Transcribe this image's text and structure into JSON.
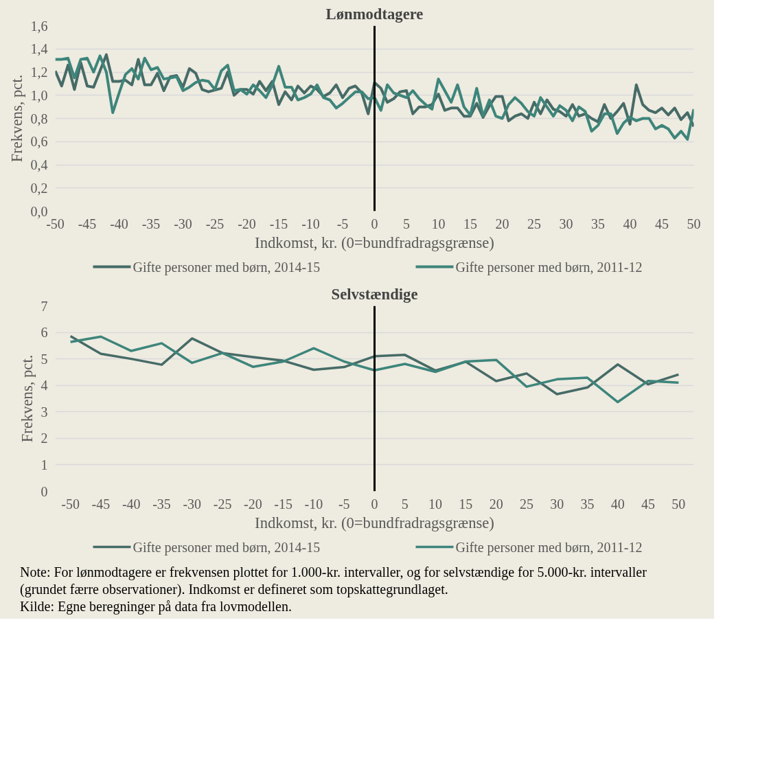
{
  "chart_data": [
    {
      "type": "line",
      "title": "Lønmodtagere",
      "xlabel": "Indkomst, kr. (0=bundfradragsgrænse)",
      "ylabel": "Frekvens, pct.",
      "series": [
        {
          "name": "Gifte personer med børn, 2014-15",
          "color": "#466b67",
          "x": [
            -50,
            -49,
            -48,
            -47,
            -46,
            -45,
            -44,
            -42,
            -41,
            -40,
            -39,
            -38,
            -37,
            -36,
            -35,
            -34,
            -33,
            -32,
            -31,
            -30,
            -29,
            -28,
            -27,
            -26,
            -24,
            -23,
            -22,
            -21,
            -20,
            -19,
            -18,
            -17,
            -16,
            -15,
            -14,
            -13,
            -12,
            -11,
            -10,
            -9,
            -8,
            -7,
            -6,
            -5,
            -4,
            -3,
            -2,
            -1,
            0,
            1,
            2,
            3,
            4,
            5,
            6,
            7,
            8,
            9,
            10,
            11,
            12,
            13,
            14,
            15,
            16,
            17,
            18,
            19,
            20,
            21,
            22,
            23,
            24,
            25,
            26,
            27,
            28,
            29,
            30,
            31,
            32,
            33,
            34,
            35,
            36,
            37,
            38,
            39,
            40,
            41,
            42,
            43,
            44,
            45,
            46,
            47,
            48,
            49,
            50
          ],
          "values": [
            1.21,
            1.08,
            1.26,
            1.05,
            1.28,
            1.08,
            1.07,
            1.35,
            1.12,
            1.12,
            1.13,
            1.09,
            1.31,
            1.09,
            1.09,
            1.19,
            1.04,
            1.16,
            1.17,
            1.07,
            1.23,
            1.19,
            1.05,
            1.03,
            1.06,
            1.2,
            1.0,
            1.05,
            1.05,
            1.01,
            1.12,
            1.04,
            1.12,
            0.92,
            1.03,
            0.96,
            1.08,
            1.02,
            1.08,
            1.05,
            0.99,
            1.02,
            1.09,
            0.98,
            1.06,
            1.08,
            1.02,
            0.84,
            1.11,
            1.06,
            0.94,
            0.97,
            1.03,
            1.04,
            0.84,
            0.9,
            0.9,
            0.92,
            1.01,
            0.87,
            0.89,
            0.89,
            0.82,
            0.82,
            0.93,
            0.81,
            0.91,
            0.99,
            0.99,
            0.78,
            0.82,
            0.84,
            0.8,
            0.94,
            0.84,
            0.96,
            0.88,
            0.86,
            0.82,
            0.92,
            0.82,
            0.84,
            0.8,
            0.77,
            0.92,
            0.8,
            0.86,
            0.93,
            0.75,
            1.09,
            0.92,
            0.87,
            0.85,
            0.89,
            0.83,
            0.89,
            0.79,
            0.85,
            0.73
          ]
        },
        {
          "name": "Gifte personer med børn, 2011-12",
          "color": "#3d857b",
          "x": [
            -50,
            -49,
            -48,
            -47,
            -46,
            -45,
            -44,
            -43,
            -42,
            -41,
            -40,
            -39,
            -38,
            -37,
            -36,
            -35,
            -34,
            -33,
            -32,
            -31,
            -30,
            -29,
            -28,
            -27,
            -26,
            -25,
            -24,
            -23,
            -22,
            -21,
            -20,
            -19,
            -18,
            -17,
            -16,
            -15,
            -14,
            -13,
            -12,
            -11,
            -10,
            -9,
            -8,
            -7,
            -6,
            -5,
            -4,
            -3,
            -2,
            -1,
            0,
            1,
            2,
            3,
            4,
            5,
            6,
            7,
            8,
            9,
            10,
            11,
            12,
            13,
            14,
            15,
            16,
            17,
            18,
            19,
            20,
            21,
            22,
            23,
            24,
            25,
            26,
            27,
            28,
            29,
            30,
            31,
            32,
            33,
            34,
            35,
            36,
            37,
            38,
            39,
            40,
            41,
            42,
            43,
            44,
            45,
            46,
            47,
            48,
            49,
            50
          ],
          "values": [
            1.31,
            1.31,
            1.32,
            1.15,
            1.31,
            1.32,
            1.2,
            1.34,
            1.2,
            0.85,
            1.02,
            1.18,
            1.23,
            1.14,
            1.32,
            1.22,
            1.24,
            1.14,
            1.15,
            1.16,
            1.04,
            1.07,
            1.11,
            1.13,
            1.12,
            1.05,
            1.21,
            1.26,
            1.04,
            1.05,
            1.01,
            1.09,
            1.04,
            0.98,
            1.09,
            1.25,
            1.07,
            1.07,
            0.96,
            0.98,
            1.01,
            1.09,
            0.98,
            0.96,
            0.89,
            0.93,
            0.98,
            1.03,
            1.03,
            0.97,
            0.98,
            0.87,
            1.09,
            1.02,
            1.0,
            0.98,
            1.04,
            0.97,
            0.92,
            0.88,
            1.14,
            1.04,
            0.94,
            1.09,
            0.9,
            0.83,
            1.06,
            0.82,
            0.96,
            0.82,
            0.8,
            0.92,
            0.98,
            0.93,
            0.86,
            0.82,
            0.98,
            0.9,
            0.82,
            0.91,
            0.87,
            0.78,
            0.9,
            0.86,
            0.69,
            0.74,
            0.84,
            0.84,
            0.67,
            0.76,
            0.81,
            0.78,
            0.8,
            0.8,
            0.71,
            0.74,
            0.71,
            0.63,
            0.69,
            0.62,
            0.88
          ]
        }
      ],
      "xlim": [
        -50,
        50
      ],
      "xticks": [
        -50,
        -45,
        -40,
        -35,
        -30,
        -25,
        -20,
        -15,
        -10,
        -5,
        0,
        5,
        10,
        15,
        20,
        25,
        30,
        35,
        40,
        45,
        50
      ],
      "ylim": [
        0,
        1.6
      ],
      "yticks": [
        {
          "value": 0,
          "label": "0,0"
        },
        {
          "value": 0.2,
          "label": "0,2"
        },
        {
          "value": 0.4,
          "label": "0,4"
        },
        {
          "value": 0.6,
          "label": "0,6"
        },
        {
          "value": 0.8,
          "label": "0,8"
        },
        {
          "value": 1.0,
          "label": "1,0"
        },
        {
          "value": 1.2,
          "label": "1,2"
        },
        {
          "value": 1.4,
          "label": "1,4"
        },
        {
          "value": 1.6,
          "label": "1,6"
        }
      ],
      "ref_lines": [
        {
          "axis": "x",
          "value": 0,
          "color": "#000000"
        }
      ],
      "grid": "y",
      "legend": "bottom"
    },
    {
      "type": "line",
      "title": "Selvstændige",
      "xlabel": "Indkomst, kr. (0=bundfradragsgrænse)",
      "ylabel": "Frekvens, pct.",
      "x": [
        -50,
        -45,
        -40,
        -35,
        -30,
        -25,
        -20,
        -15,
        -10,
        -5,
        0,
        5,
        10,
        15,
        20,
        25,
        30,
        35,
        40,
        45,
        50
      ],
      "series": [
        {
          "name": "Gifte personer med børn, 2014-15",
          "color": "#466b67",
          "values": [
            5.86,
            5.19,
            5.0,
            4.78,
            5.77,
            5.22,
            5.07,
            4.93,
            4.59,
            4.69,
            5.1,
            5.15,
            4.56,
            4.89,
            4.16,
            4.45,
            3.67,
            3.92,
            4.79,
            4.04,
            4.41
          ]
        },
        {
          "name": "Gifte personer med børn, 2011-12",
          "color": "#3d857b",
          "values": [
            5.64,
            5.84,
            5.3,
            5.59,
            4.85,
            5.22,
            4.7,
            4.9,
            5.4,
            4.9,
            4.57,
            4.81,
            4.51,
            4.9,
            4.96,
            3.95,
            4.23,
            4.29,
            3.37,
            4.17,
            4.1
          ]
        }
      ],
      "xlim": [
        -52.5,
        52.5
      ],
      "xticks": [
        -50,
        -45,
        -40,
        -35,
        -30,
        -25,
        -20,
        -15,
        -10,
        -5,
        0,
        5,
        10,
        15,
        20,
        25,
        30,
        35,
        40,
        45,
        50
      ],
      "ylim": [
        0,
        7
      ],
      "yticks": [
        0,
        1,
        2,
        3,
        4,
        5,
        6,
        7
      ],
      "ref_lines": [
        {
          "axis": "x",
          "value": 0,
          "color": "#000000"
        }
      ],
      "grid": "y",
      "legend": "bottom",
      "annotations": [
        "Note: For lønmodtagere er frekvensen plottet for 1.000-kr. intervaller, og for selvstændige for 5.000-kr. intervaller (grundet færre observationer). Indkomst er defineret som topskattegrundlaget.",
        "Kilde: Egne beregninger på data fra lovmodellen."
      ]
    }
  ]
}
